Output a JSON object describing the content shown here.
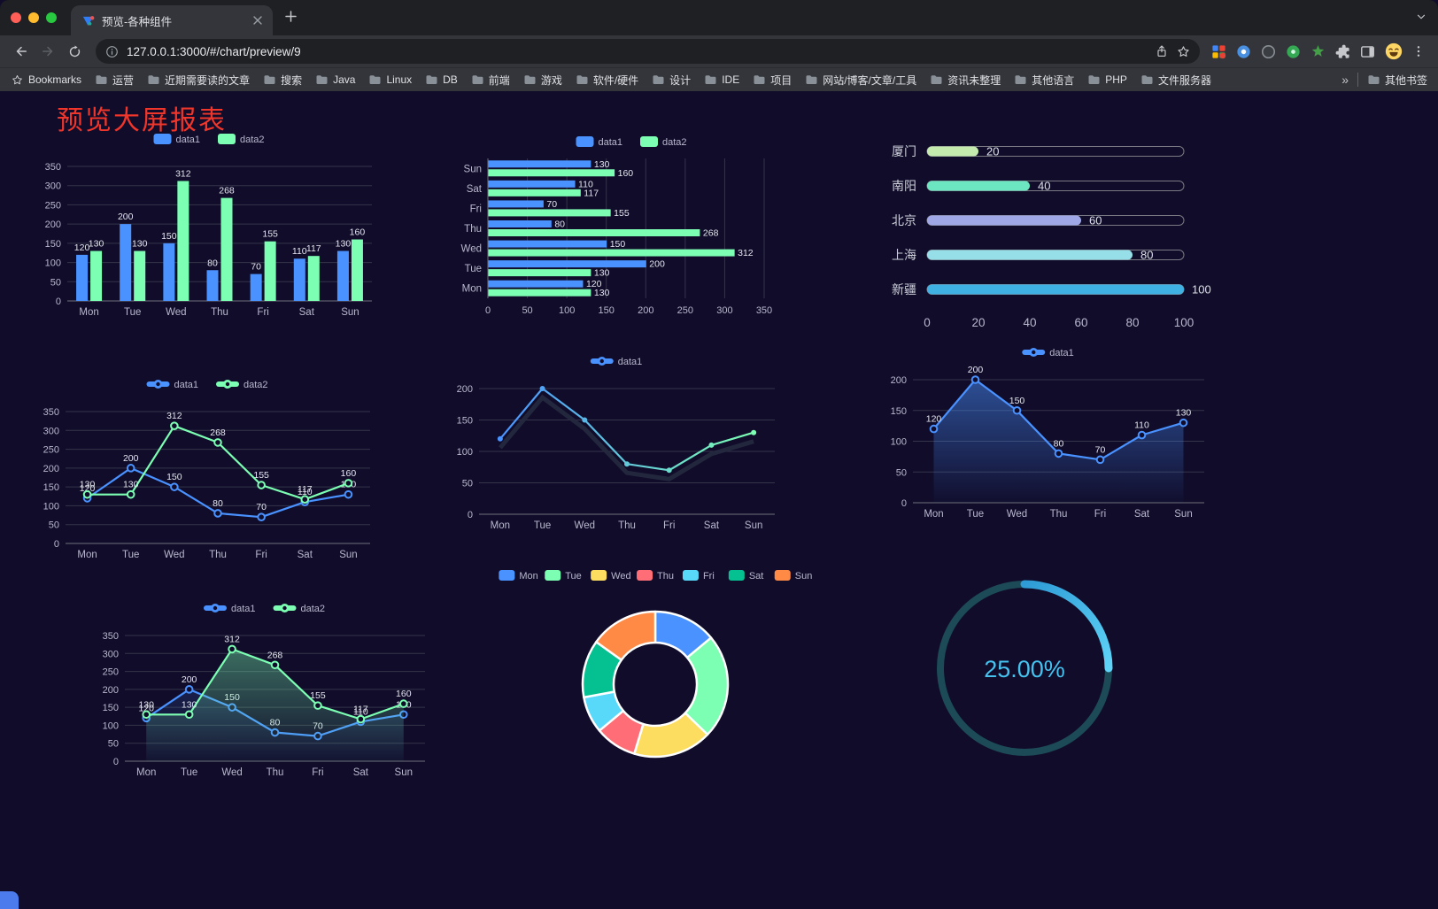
{
  "browser": {
    "tab_title": "预览-各种组件",
    "url": "127.0.0.1:3000/#/chart/preview/9",
    "bookmarks_first": "Bookmarks",
    "bookmarks": [
      "运营",
      "近期需要读的文章",
      "搜索",
      "Java",
      "Linux",
      "DB",
      "前端",
      "游戏",
      "软件/硬件",
      "设计",
      "IDE",
      "项目",
      "网站/博客/文章/工具",
      "资讯未整理",
      "其他语言",
      "PHP",
      "文件服务器"
    ],
    "bookmarks_overflow": "»",
    "bookmarks_other": "其他书签"
  },
  "page": {
    "title": "预览大屏报表",
    "title_color": "#f0362b",
    "background": "#100c2a",
    "axis_text_color": "#B9B8CE"
  },
  "chart_data": [
    {
      "id": "bar-vertical",
      "type": "bar",
      "legend": [
        "data1",
        "data2"
      ],
      "categories": [
        "Mon",
        "Tue",
        "Wed",
        "Thu",
        "Fri",
        "Sat",
        "Sun"
      ],
      "series": [
        {
          "name": "data1",
          "color": "#4992ff",
          "values": [
            120,
            200,
            150,
            80,
            70,
            110,
            130
          ]
        },
        {
          "name": "data2",
          "color": "#7cffb2",
          "values": [
            130,
            130,
            312,
            268,
            155,
            117,
            160
          ]
        }
      ],
      "ylim": [
        0,
        350
      ],
      "yticks": [
        0,
        50,
        100,
        150,
        200,
        250,
        300,
        350
      ]
    },
    {
      "id": "bar-horizontal",
      "type": "hbar",
      "legend": [
        "data1",
        "data2"
      ],
      "categories": [
        "Mon",
        "Tue",
        "Wed",
        "Thu",
        "Fri",
        "Sat",
        "Sun"
      ],
      "series": [
        {
          "name": "data1",
          "color": "#4992ff",
          "values": [
            120,
            200,
            150,
            80,
            70,
            110,
            130
          ]
        },
        {
          "name": "data2",
          "color": "#7cffb2",
          "values": [
            130,
            130,
            312,
            268,
            155,
            117,
            160
          ]
        }
      ],
      "xlim": [
        0,
        350
      ],
      "xticks": [
        0,
        50,
        100,
        150,
        200,
        250,
        300,
        350
      ]
    },
    {
      "id": "progress-bars",
      "type": "progress",
      "categories": [
        "厦门",
        "南阳",
        "北京",
        "上海",
        "新疆"
      ],
      "values": [
        20,
        40,
        60,
        80,
        100
      ],
      "colors": [
        "#c4ebad",
        "#6be6c1",
        "#a0a7e6",
        "#96dee8",
        "#3fb1e3"
      ],
      "max": 100,
      "xticks": [
        0,
        20,
        40,
        60,
        80,
        100
      ]
    },
    {
      "id": "line-two-series",
      "type": "line",
      "legend": [
        "data1",
        "data2"
      ],
      "labels": true,
      "categories": [
        "Mon",
        "Tue",
        "Wed",
        "Thu",
        "Fri",
        "Sat",
        "Sun"
      ],
      "series": [
        {
          "name": "data1",
          "color": "#4992ff",
          "values": [
            120,
            200,
            150,
            80,
            70,
            110,
            130
          ]
        },
        {
          "name": "data2",
          "color": "#7cffb2",
          "values": [
            130,
            130,
            312,
            268,
            155,
            117,
            160
          ]
        }
      ],
      "ylim": [
        0,
        350
      ],
      "yticks": [
        0,
        50,
        100,
        150,
        200,
        250,
        300,
        350
      ]
    },
    {
      "id": "line-gradient",
      "type": "line",
      "legend": [
        "data1"
      ],
      "labels": false,
      "shadow": true,
      "categories": [
        "Mon",
        "Tue",
        "Wed",
        "Thu",
        "Fri",
        "Sat",
        "Sun"
      ],
      "series": [
        {
          "name": "data1",
          "gradient": [
            "#4992ff",
            "#7cffb2"
          ],
          "values": [
            120,
            200,
            150,
            80,
            70,
            110,
            130
          ]
        }
      ],
      "ylim": [
        0,
        200
      ],
      "yticks": [
        0,
        50,
        100,
        150,
        200
      ]
    },
    {
      "id": "area-single",
      "type": "line",
      "legend": [
        "data1"
      ],
      "labels": true,
      "categories": [
        "Mon",
        "Tue",
        "Wed",
        "Thu",
        "Fri",
        "Sat",
        "Sun"
      ],
      "series": [
        {
          "name": "data1",
          "color": "#4992ff",
          "values": [
            120,
            200,
            150,
            80,
            70,
            110,
            130
          ],
          "area": true,
          "area_opacity": 0.5
        }
      ],
      "ylim": [
        0,
        200
      ],
      "yticks": [
        0,
        50,
        100,
        150,
        200
      ]
    },
    {
      "id": "line-area-two",
      "type": "line",
      "legend": [
        "data1",
        "data2"
      ],
      "labels": true,
      "categories": [
        "Mon",
        "Tue",
        "Wed",
        "Thu",
        "Fri",
        "Sat",
        "Sun"
      ],
      "series": [
        {
          "name": "data1",
          "color": "#4992ff",
          "values": [
            120,
            200,
            150,
            80,
            70,
            110,
            130
          ],
          "area": true,
          "area_opacity": 0.15
        },
        {
          "name": "data2",
          "color": "#7cffb2",
          "values": [
            130,
            130,
            312,
            268,
            155,
            117,
            160
          ],
          "area": true,
          "area_opacity": 0.4
        }
      ],
      "ylim": [
        0,
        350
      ],
      "yticks": [
        0,
        50,
        100,
        150,
        200,
        250,
        300,
        350
      ]
    },
    {
      "id": "donut",
      "type": "donut",
      "categories": [
        "Mon",
        "Tue",
        "Wed",
        "Thu",
        "Fri",
        "Sat",
        "Sun"
      ],
      "values": [
        120,
        200,
        150,
        80,
        70,
        110,
        130
      ],
      "colors": [
        "#4992ff",
        "#7cffb2",
        "#fddd60",
        "#ff6e76",
        "#58d9f9",
        "#05c091",
        "#ff8a45"
      ]
    },
    {
      "id": "gauge",
      "type": "gauge",
      "value": 25,
      "label": "25.00%",
      "text_color": "#45c2ee",
      "ring_color": "#1d4a57",
      "arc_colors": [
        "#2e9bd6",
        "#5fd4f7"
      ]
    }
  ]
}
